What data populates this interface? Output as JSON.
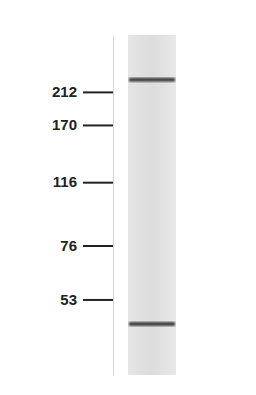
{
  "chart_data": {
    "type": "blot",
    "log": "y",
    "ylim": [
      32,
      310
    ],
    "yticks": [
      212,
      170,
      116,
      76,
      53
    ],
    "values": [
      230,
      45
    ],
    "color": "#3e3e3e"
  }
}
